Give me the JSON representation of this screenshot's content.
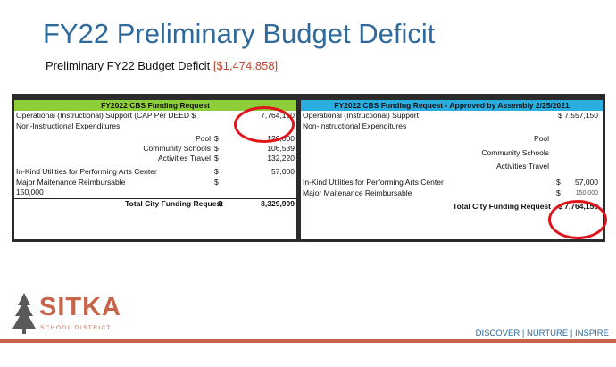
{
  "title": "FY22 Preliminary Budget Deficit",
  "subtitle": {
    "label": "Preliminary FY22 Budget Deficit",
    "amount": "[$1,474,858]"
  },
  "left_table": {
    "header": "FY2022 CBS Funding Request",
    "rows": [
      {
        "label": "Operational (Instructional) Support (CAP Per DEED $",
        "value": "7,764,150"
      },
      {
        "label": "Non-Instructional Expenditures",
        "value": ""
      },
      {
        "label": "Pool",
        "dollar": "$",
        "value": "120,000"
      },
      {
        "label": "Community Schools",
        "dollar": "$",
        "value": "106,539"
      },
      {
        "label": "Activities Travel",
        "dollar": "$",
        "value": "132,220"
      },
      {
        "label": "In-Kind Utilities for Performing Arts Center",
        "dollar": "$",
        "value": "57,000"
      },
      {
        "label": "Major Maitenance Reimbursable",
        "dollar": "$",
        "value": ""
      },
      {
        "label": "150,000",
        "value": ""
      }
    ],
    "total_label": "Total City Funding Request",
    "total_dollar": "$",
    "total_value": "8,329,909"
  },
  "right_table": {
    "header": "FY2022 CBS Funding Request - Approved by Assembly 2/25/2021",
    "rows": [
      {
        "label": "Operational (Instructional) Support",
        "value": "$ 7,557,150"
      },
      {
        "label": "Non-Instructional Expenditures",
        "value": ""
      },
      {
        "label": "Pool",
        "value": ""
      },
      {
        "label": "Community Schools",
        "value": ""
      },
      {
        "label": "Activities Travel",
        "value": ""
      },
      {
        "label": "In-Kind Utilities for Performing Arts Center",
        "dollar": "$",
        "value": "57,000"
      },
      {
        "label": "Major Maitenance Reimbursable",
        "dollar": "$",
        "value": "150,000"
      }
    ],
    "total_label": "Total City Funding Request",
    "total_value": "$ 7,764,150"
  },
  "logo": {
    "name": "SITKA",
    "sub": "SCHOOL DISTRICT"
  },
  "tagline": "DISCOVER | NURTURE | INSPIRE",
  "colors": {
    "title": "#2f6a9c",
    "deficit": "#c4442e",
    "left_header": "#8fce3b",
    "right_header": "#2aaee0",
    "highlight_circle": "#e0141b",
    "brand": "#c8644a"
  }
}
